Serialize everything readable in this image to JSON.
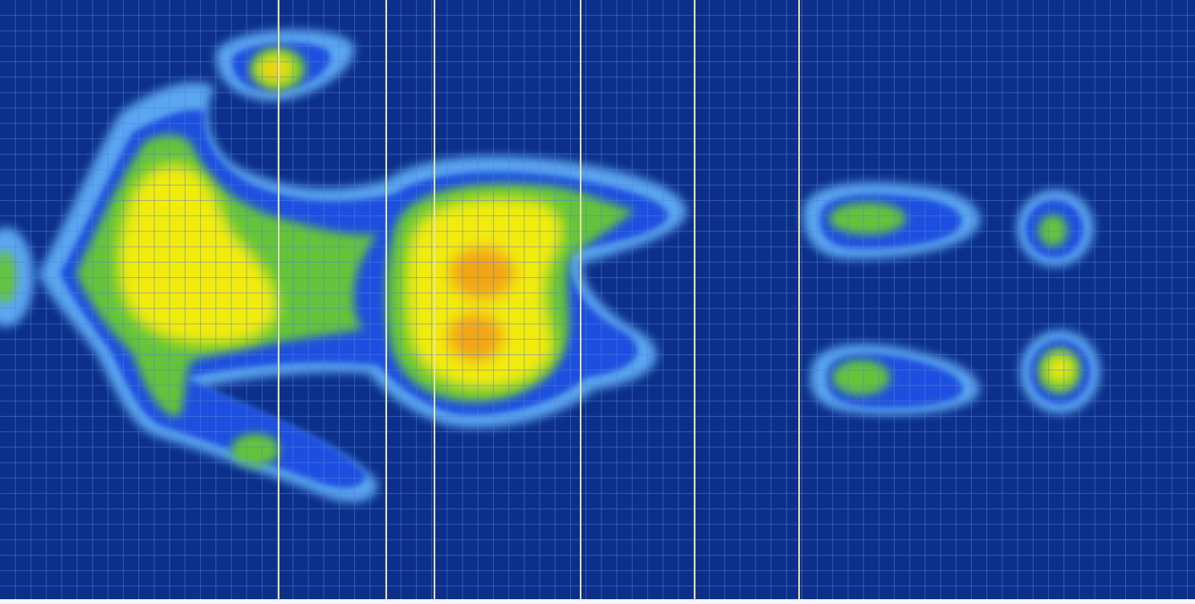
{
  "pressure_map": {
    "colors": {
      "background": "#0b2f8a",
      "grid": "#5a7fd6",
      "section_line": "#e8e6a0",
      "outer_halo": "#5aa6f0",
      "blue_ring": "#1d4fe0",
      "green": "#63c43a",
      "yellow": "#f2ec10",
      "orange": "#f2a614"
    },
    "heat_levels": [
      "outer_halo",
      "blue_ring",
      "green",
      "yellow",
      "orange"
    ],
    "section_line_count": 6,
    "sensor_grid": "on"
  }
}
